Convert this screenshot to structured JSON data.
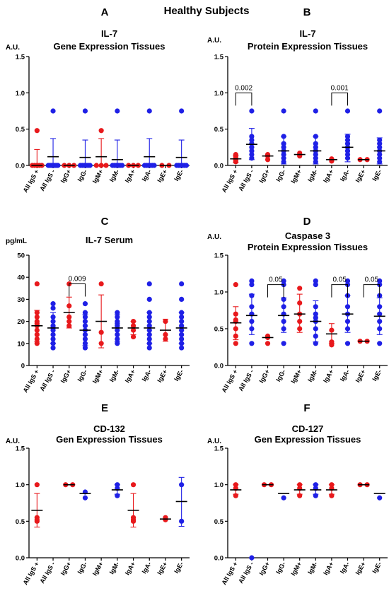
{
  "main_title": "Healthy Subjects",
  "colors": {
    "positive": "#e8191c",
    "negative": "#1f20e6",
    "axis": "#000000"
  },
  "chart_data": [
    {
      "id": "A",
      "letter": "A",
      "type": "scatter",
      "title_lines": [
        "IL-7",
        "Gene Expression Tissues"
      ],
      "unit": "A.U.",
      "ylim": [
        0,
        1.5
      ],
      "yticks": [
        0.0,
        0.5,
        1.0,
        1.5
      ],
      "ytick_labels": [
        "0.0",
        "0.5",
        "1.0",
        "1.5"
      ],
      "categories": [
        "All IgS +",
        "All IgS -",
        "IgG+",
        "IgG-",
        "IgM+",
        "IgM-",
        "IgA+",
        "IgA-",
        "IgE+",
        "IgE-"
      ],
      "groups": [
        {
          "mean": 0.0,
          "sd": [
            0.0,
            0.22
          ],
          "points": [
            0,
            0,
            0,
            0,
            0,
            0.48
          ]
        },
        {
          "mean": 0.12,
          "sd": [
            0.0,
            0.37
          ],
          "points": [
            0,
            0,
            0,
            0,
            0,
            0,
            0,
            0,
            0.75
          ]
        },
        {
          "mean": 0.0,
          "sd": null,
          "points": [
            0,
            0,
            0
          ]
        },
        {
          "mean": 0.11,
          "sd": [
            0.0,
            0.35
          ],
          "points": [
            0,
            0,
            0,
            0,
            0,
            0,
            0.75
          ]
        },
        {
          "mean": 0.12,
          "sd": [
            0.0,
            0.37
          ],
          "points": [
            0,
            0,
            0,
            0.48
          ]
        },
        {
          "mean": 0.08,
          "sd": [
            0.0,
            0.35
          ],
          "points": [
            0,
            0,
            0,
            0,
            0,
            0,
            0.75
          ]
        },
        {
          "mean": 0.0,
          "sd": null,
          "points": [
            0,
            0,
            0
          ]
        },
        {
          "mean": 0.12,
          "sd": [
            0.0,
            0.37
          ],
          "points": [
            0,
            0,
            0,
            0,
            0,
            0,
            0.75
          ]
        },
        {
          "mean": 0.0,
          "sd": null,
          "points": [
            0,
            0
          ]
        },
        {
          "mean": 0.11,
          "sd": [
            0.0,
            0.35
          ],
          "points": [
            0,
            0,
            0,
            0,
            0,
            0,
            0.75
          ]
        }
      ],
      "brackets": []
    },
    {
      "id": "B",
      "letter": "B",
      "type": "scatter",
      "title_lines": [
        "IL-7",
        "Protein Expression Tissues"
      ],
      "unit": "A.U.",
      "ylim": [
        0,
        1.5
      ],
      "yticks": [
        0.0,
        0.5,
        1.0,
        1.5
      ],
      "ytick_labels": [
        "0.0",
        "0.5",
        "1.0",
        "1.5"
      ],
      "categories": [
        "All IgS +",
        "All IgS -",
        "IgG+",
        "IgG-",
        "IgM+",
        "IgM-",
        "IgA+",
        "IgA-",
        "IgE+",
        "IgE-"
      ],
      "groups": [
        {
          "mean": 0.09,
          "sd": [
            0.04,
            0.14
          ],
          "points": [
            0.05,
            0.07,
            0.08,
            0.1,
            0.12,
            0.15
          ]
        },
        {
          "mean": 0.29,
          "sd": [
            0.08,
            0.51
          ],
          "points": [
            0.1,
            0.15,
            0.2,
            0.25,
            0.3,
            0.35,
            0.4,
            0.75
          ]
        },
        {
          "mean": 0.13,
          "sd": null,
          "points": [
            0.08,
            0.13,
            0.15
          ]
        },
        {
          "mean": 0.2,
          "sd": [
            0.02,
            0.4
          ],
          "points": [
            0.05,
            0.1,
            0.15,
            0.2,
            0.25,
            0.3,
            0.4,
            0.75
          ]
        },
        {
          "mean": 0.15,
          "sd": null,
          "points": [
            0.13,
            0.17,
            0.15
          ]
        },
        {
          "mean": 0.2,
          "sd": [
            0.02,
            0.4
          ],
          "points": [
            0.05,
            0.1,
            0.15,
            0.2,
            0.25,
            0.3,
            0.4,
            0.75
          ]
        },
        {
          "mean": 0.08,
          "sd": null,
          "points": [
            0.06,
            0.08,
            0.09
          ]
        },
        {
          "mean": 0.25,
          "sd": [
            0.05,
            0.43
          ],
          "points": [
            0.1,
            0.15,
            0.2,
            0.25,
            0.3,
            0.35,
            0.4,
            0.75
          ]
        },
        {
          "mean": 0.08,
          "sd": null,
          "points": [
            0.08,
            0.08
          ]
        },
        {
          "mean": 0.2,
          "sd": [
            0.02,
            0.38
          ],
          "points": [
            0.05,
            0.1,
            0.15,
            0.2,
            0.25,
            0.3,
            0.35,
            0.75
          ]
        }
      ],
      "brackets": [
        {
          "from": 0,
          "to": 1,
          "y": 1.0,
          "label": "0.002"
        },
        {
          "from": 6,
          "to": 7,
          "y": 1.0,
          "label": "0.001"
        }
      ]
    },
    {
      "id": "C",
      "letter": "C",
      "type": "scatter",
      "title_lines": [
        "IL-7 Serum"
      ],
      "unit": "pg/mL",
      "ylim": [
        0,
        50
      ],
      "yticks": [
        0,
        10,
        20,
        30,
        40,
        50
      ],
      "ytick_labels": [
        "0",
        "10",
        "20",
        "30",
        "40",
        "50"
      ],
      "categories": [
        "All IgS +",
        "All IgS -",
        "IgG+",
        "IgG-",
        "IgM+",
        "IgM-",
        "IgA+",
        "IgA-",
        "IgE+",
        "IgE-"
      ],
      "groups": [
        {
          "mean": 18,
          "sd": [
            11,
            25
          ],
          "points": [
            10,
            12,
            14,
            16,
            18,
            19,
            20,
            22,
            24,
            37
          ]
        },
        {
          "mean": 17,
          "sd": [
            10,
            24
          ],
          "points": [
            8,
            10,
            12,
            14,
            16,
            17,
            18,
            20,
            22,
            26,
            28
          ]
        },
        {
          "mean": 24,
          "sd": [
            17,
            31
          ],
          "points": [
            18,
            20,
            22,
            27,
            37
          ]
        },
        {
          "mean": 16,
          "sd": [
            9,
            23
          ],
          "points": [
            8,
            10,
            12,
            14,
            16,
            18,
            20,
            22,
            24,
            28
          ]
        },
        {
          "mean": 20,
          "sd": [
            8,
            32
          ],
          "points": [
            10,
            15,
            37
          ]
        },
        {
          "mean": 17,
          "sd": [
            11,
            23
          ],
          "points": [
            10,
            12,
            14,
            16,
            18,
            19,
            20,
            22,
            24
          ]
        },
        {
          "mean": 17,
          "sd": [
            14,
            20
          ],
          "points": [
            13,
            16,
            18,
            20
          ]
        },
        {
          "mean": 17,
          "sd": [
            10,
            24
          ],
          "points": [
            8,
            10,
            12,
            14,
            16,
            18,
            20,
            22,
            24,
            30,
            37
          ]
        },
        {
          "mean": 16,
          "sd": [
            11,
            21
          ],
          "points": [
            12,
            14,
            20
          ]
        },
        {
          "mean": 17,
          "sd": [
            10,
            24
          ],
          "points": [
            8,
            10,
            12,
            14,
            16,
            18,
            20,
            22,
            24,
            30,
            37
          ]
        }
      ],
      "brackets": [
        {
          "from": 2,
          "to": 3,
          "y": 37,
          "label": "0.009"
        }
      ]
    },
    {
      "id": "D",
      "letter": "D",
      "type": "scatter",
      "title_lines": [
        "Caspase 3",
        "Protein Expression Tissues"
      ],
      "unit": "A.U.",
      "ylim": [
        0,
        1.5
      ],
      "yticks": [
        0.0,
        0.5,
        1.0,
        1.5
      ],
      "ytick_labels": [
        "0.0",
        "0.5",
        "1.0",
        "1.5"
      ],
      "categories": [
        "All IgS +",
        "All IgS -",
        "IgG+",
        "IgG-",
        "IgM+",
        "IgM-",
        "IgA+",
        "IgA-",
        "IgE+",
        "IgE-"
      ],
      "groups": [
        {
          "mean": 0.58,
          "sd": [
            0.35,
            0.8
          ],
          "points": [
            0.3,
            0.4,
            0.5,
            0.6,
            0.62,
            0.7,
            1.1
          ]
        },
        {
          "mean": 0.68,
          "sd": [
            0.42,
            0.97
          ],
          "points": [
            0.3,
            0.5,
            0.6,
            0.7,
            0.8,
            0.95,
            1.1,
            1.15
          ]
        },
        {
          "mean": 0.38,
          "sd": null,
          "points": [
            0.3,
            0.38,
            0.4
          ]
        },
        {
          "mean": 0.68,
          "sd": [
            0.45,
            0.92
          ],
          "points": [
            0.3,
            0.5,
            0.6,
            0.7,
            0.8,
            0.9,
            1.1,
            1.15
          ]
        },
        {
          "mean": 0.7,
          "sd": [
            0.45,
            0.97
          ],
          "points": [
            0.5,
            0.6,
            0.7,
            0.85,
            1.05
          ]
        },
        {
          "mean": 0.6,
          "sd": [
            0.32,
            0.88
          ],
          "points": [
            0.3,
            0.4,
            0.5,
            0.6,
            0.65,
            0.7,
            0.8,
            1.1,
            1.15
          ]
        },
        {
          "mean": 0.43,
          "sd": [
            0.3,
            0.57
          ],
          "points": [
            0.28,
            0.32,
            0.48
          ]
        },
        {
          "mean": 0.7,
          "sd": [
            0.45,
            0.95
          ],
          "points": [
            0.3,
            0.5,
            0.6,
            0.7,
            0.8,
            0.95,
            1.1,
            1.15
          ]
        },
        {
          "mean": 0.33,
          "sd": null,
          "points": [
            0.33,
            0.33
          ]
        },
        {
          "mean": 0.67,
          "sd": [
            0.42,
            0.92
          ],
          "points": [
            0.3,
            0.5,
            0.6,
            0.7,
            0.8,
            0.95,
            1.1,
            1.15
          ]
        }
      ],
      "brackets": [
        {
          "from": 2,
          "to": 3,
          "y": 1.1,
          "label": "0.05"
        },
        {
          "from": 6,
          "to": 7,
          "y": 1.1,
          "label": "0.05"
        },
        {
          "from": 8,
          "to": 9,
          "y": 1.1,
          "label": "0.05"
        }
      ]
    },
    {
      "id": "E",
      "letter": "E",
      "type": "scatter",
      "title_lines": [
        "CD-132",
        "Gen Expression Tissues"
      ],
      "unit": "A.U.",
      "ylim": [
        0,
        1.5
      ],
      "yticks": [
        0.0,
        0.5,
        1.0,
        1.5
      ],
      "ytick_labels": [
        "0.0",
        "0.5",
        "1.0",
        "1.5"
      ],
      "categories": [
        "All IgS +",
        "All IgS -",
        "IgG+",
        "IgG-",
        "IgM+",
        "IgM-",
        "IgA+",
        "IgA-",
        "IgE+",
        "IgE-"
      ],
      "groups": [
        {
          "mean": 0.65,
          "sd": [
            0.42,
            0.88
          ],
          "points": [
            0.5,
            0.52,
            0.55,
            1.0
          ]
        },
        {
          "mean": null,
          "sd": null,
          "points": []
        },
        {
          "mean": 1.0,
          "sd": null,
          "points": [
            1.0,
            1.0
          ]
        },
        {
          "mean": 0.88,
          "sd": null,
          "points": [
            0.9,
            0.82
          ]
        },
        {
          "mean": null,
          "sd": null,
          "points": []
        },
        {
          "mean": 0.93,
          "sd": [
            0.87,
            1.0
          ],
          "points": [
            0.85,
            0.95,
            1.0
          ]
        },
        {
          "mean": 0.65,
          "sd": [
            0.42,
            0.88
          ],
          "points": [
            0.5,
            0.52,
            0.55,
            1.0
          ]
        },
        {
          "mean": null,
          "sd": null,
          "points": []
        },
        {
          "mean": 0.53,
          "sd": null,
          "points": [
            0.52,
            0.55
          ]
        },
        {
          "mean": 0.77,
          "sd": [
            0.43,
            1.1
          ],
          "points": [
            0.5,
            1.0
          ]
        }
      ],
      "brackets": []
    },
    {
      "id": "F",
      "letter": "F",
      "type": "scatter",
      "title_lines": [
        "CD-127",
        "Gen Expression Tissues"
      ],
      "unit": "A.U.",
      "ylim": [
        0,
        1.5
      ],
      "yticks": [
        0.0,
        0.5,
        1.0,
        1.5
      ],
      "ytick_labels": [
        "0.0",
        "0.5",
        "1.0",
        "1.5"
      ],
      "categories": [
        "All IgS +",
        "All IgS -",
        "IgG+",
        "IgG-",
        "IgM+",
        "IgM-",
        "IgA+",
        "IgA-",
        "IgE+",
        "IgE-"
      ],
      "groups": [
        {
          "mean": 0.93,
          "sd": [
            0.87,
            1.0
          ],
          "points": [
            0.85,
            0.95,
            1.0
          ]
        },
        {
          "mean": null,
          "sd": null,
          "points": [
            0.0
          ]
        },
        {
          "mean": 1.0,
          "sd": null,
          "points": [
            1.0,
            1.0
          ]
        },
        {
          "mean": 0.88,
          "sd": null,
          "points": [
            0.82
          ]
        },
        {
          "mean": 0.93,
          "sd": [
            0.87,
            1.0
          ],
          "points": [
            0.85,
            0.95,
            1.0
          ]
        },
        {
          "mean": 0.93,
          "sd": [
            0.87,
            1.0
          ],
          "points": [
            0.85,
            0.95,
            1.0
          ]
        },
        {
          "mean": 0.93,
          "sd": [
            0.87,
            1.0
          ],
          "points": [
            0.85,
            0.95,
            1.0
          ]
        },
        {
          "mean": null,
          "sd": null,
          "points": []
        },
        {
          "mean": 1.0,
          "sd": null,
          "points": [
            1.0,
            1.0
          ]
        },
        {
          "mean": 0.88,
          "sd": null,
          "points": [
            0.82
          ]
        }
      ],
      "brackets": []
    }
  ]
}
